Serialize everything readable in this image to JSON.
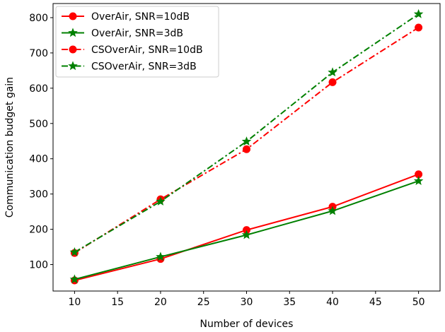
{
  "chart_data": {
    "type": "line",
    "xlabel": "Number of devices",
    "ylabel": "Communication budget gain",
    "xlim": [
      7.5,
      52.5
    ],
    "ylim": [
      25,
      840
    ],
    "xticks": [
      10,
      15,
      20,
      25,
      30,
      35,
      40,
      45,
      50
    ],
    "yticks": [
      100,
      200,
      300,
      400,
      500,
      600,
      700,
      800
    ],
    "grid": false,
    "legend_position": "top-left",
    "series": [
      {
        "name": "OverAir, SNR=10dB",
        "color": "#ff0000",
        "line_style": "solid",
        "marker": "circle",
        "x": [
          10,
          20,
          30,
          40,
          50
        ],
        "y": [
          55,
          116,
          198,
          264,
          356
        ]
      },
      {
        "name": "OverAir, SNR=3dB",
        "color": "#008000",
        "line_style": "solid",
        "marker": "star",
        "x": [
          10,
          20,
          30,
          40,
          50
        ],
        "y": [
          58,
          122,
          184,
          252,
          337
        ]
      },
      {
        "name": "CSOverAir, SNR=10dB",
        "color": "#ff0000",
        "line_style": "dashdot",
        "marker": "circle",
        "x": [
          10,
          20,
          30,
          40,
          50
        ],
        "y": [
          133,
          285,
          427,
          617,
          772
        ]
      },
      {
        "name": "CSOverAir, SNR=3dB",
        "color": "#008000",
        "line_style": "dashdot",
        "marker": "star",
        "x": [
          10,
          20,
          30,
          40,
          50
        ],
        "y": [
          135,
          279,
          449,
          645,
          810
        ]
      }
    ]
  }
}
